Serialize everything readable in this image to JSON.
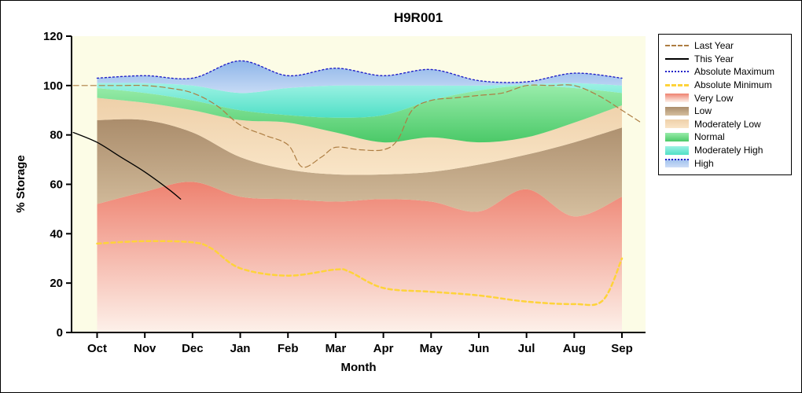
{
  "chart_data": {
    "type": "area",
    "title": "H9R001",
    "xlabel": "Month",
    "ylabel": "% Storage",
    "ylim": [
      0,
      120
    ],
    "yticks": [
      0,
      20,
      40,
      60,
      80,
      100,
      120
    ],
    "categories": [
      "Oct",
      "Nov",
      "Dec",
      "Jan",
      "Feb",
      "Mar",
      "Apr",
      "May",
      "Jun",
      "Jul",
      "Aug",
      "Sep"
    ],
    "plot_bg": "#fcfce6",
    "bands": [
      {
        "name": "Very Low",
        "top": [
          52,
          57,
          61,
          55,
          54,
          53,
          54,
          53,
          49,
          58,
          47,
          55
        ],
        "color_top": "#ee8270",
        "color_bottom": "#fdf1ea"
      },
      {
        "name": "Low",
        "top": [
          86,
          86,
          81,
          71,
          66,
          64,
          64,
          65,
          68,
          72,
          77,
          83
        ],
        "color_top": "#ab8d6c",
        "color_bottom": "#d5bf9f"
      },
      {
        "name": "Moderately Low",
        "top": [
          95,
          93,
          90,
          86,
          85,
          81,
          77,
          79,
          77,
          79,
          85,
          92
        ],
        "color_top": "#eed0a9",
        "color_bottom": "#f9e5c7"
      },
      {
        "name": "Normal",
        "top": [
          99,
          97,
          94,
          90,
          88,
          87,
          88,
          94,
          98,
          100,
          99,
          97
        ],
        "color_top": "#98ecaa",
        "color_bottom": "#4bc968"
      },
      {
        "name": "Moderately High",
        "top": [
          101,
          101,
          100,
          97,
          99,
          100,
          100,
          100,
          100,
          100.5,
          101,
          100
        ],
        "color_top": "#9df2e4",
        "color_bottom": "#50dfc6"
      },
      {
        "name": "High",
        "top": [
          103,
          104,
          103,
          110,
          104,
          107,
          104,
          106.5,
          102,
          101.5,
          105,
          103
        ],
        "color_top": "#8fb6e9",
        "color_bottom": "#c6daf5"
      }
    ],
    "lines": [
      {
        "name": "Last Year",
        "style": "dash",
        "color": "#ad7d42",
        "width": 1.2,
        "x": [
          -0.5,
          0,
          0.5,
          1,
          1.5,
          2,
          2.5,
          3,
          3.5,
          4,
          4.3,
          4.7,
          5,
          5.5,
          6,
          6.3,
          6.6,
          7,
          7.5,
          8,
          8.5,
          9,
          9.5,
          10,
          10.5,
          11,
          11.4
        ],
        "y": [
          100,
          100,
          100,
          100,
          99,
          97,
          92,
          84,
          80,
          76,
          67,
          71,
          75,
          74,
          74,
          78,
          90,
          94,
          95,
          96,
          97,
          100,
          100,
          100,
          96,
          90,
          85
        ]
      },
      {
        "name": "This Year",
        "style": "solid",
        "color": "#000000",
        "width": 1.3,
        "x": [
          -0.5,
          0,
          0.5,
          1,
          1.5,
          1.75
        ],
        "y": [
          81,
          77,
          71,
          65,
          58,
          54
        ]
      },
      {
        "name": "Absolute Maximum",
        "style": "dot",
        "color": "#2121c8",
        "width": 1.4,
        "x": [
          0,
          1,
          2,
          3,
          4,
          5,
          6,
          7,
          8,
          9,
          10,
          11
        ],
        "y": [
          103,
          104,
          103,
          110,
          104,
          107,
          104,
          106.5,
          102,
          101.5,
          105,
          103
        ]
      },
      {
        "name": "Absolute Minimum",
        "style": "dashbold",
        "color": "#fed33a",
        "width": 2.5,
        "x": [
          0,
          1,
          2,
          2.4,
          3,
          4,
          5,
          5.3,
          6,
          7,
          8,
          9,
          10,
          10.6,
          11
        ],
        "y": [
          36,
          37,
          36.5,
          34,
          26,
          23,
          25.5,
          24.5,
          18,
          16.5,
          15,
          12.5,
          11.5,
          13,
          30
        ]
      }
    ],
    "legend": [
      {
        "label": "Last Year",
        "kind": "dash",
        "color": "#ad7d42"
      },
      {
        "label": "This Year",
        "kind": "solid",
        "color": "#000000"
      },
      {
        "label": "Absolute Maximum",
        "kind": "dot",
        "color": "#2121c8"
      },
      {
        "label": "Absolute Minimum",
        "kind": "dashbold",
        "color": "#fed33a"
      },
      {
        "label": "Very Low",
        "kind": "patch",
        "color": "#ee8270",
        "color2": "#fdf1ea"
      },
      {
        "label": "Low",
        "kind": "patch",
        "color": "#ab8d6c",
        "color2": "#d5bf9f"
      },
      {
        "label": "Moderately Low",
        "kind": "patch",
        "color": "#eed0a9",
        "color2": "#f9e5c7"
      },
      {
        "label": "Normal",
        "kind": "patch",
        "color": "#98ecaa",
        "color2": "#4bc968"
      },
      {
        "label": "Moderately High",
        "kind": "patch",
        "color": "#9df2e4",
        "color2": "#50dfc6"
      },
      {
        "label": "High",
        "kind": "patchdot",
        "color": "#a3c3ee",
        "color2": "#cdddf6",
        "line": "#2121c8"
      }
    ]
  }
}
